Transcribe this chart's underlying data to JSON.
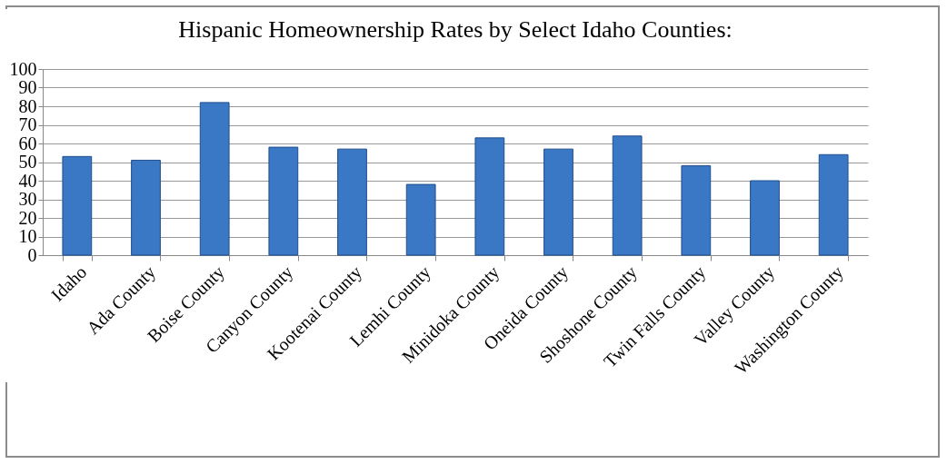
{
  "chart_data": {
    "type": "bar",
    "title": "Hispanic Homeownership Rates by Select Idaho Counties:",
    "categories": [
      "Idaho",
      "Ada County",
      "Boise County",
      "Canyon County",
      "Kootenai County",
      "Lemhi County",
      "Minidoka County",
      "Oneida County",
      "Shoshone County",
      "Twin Falls County",
      "Valley County",
      "Washington County"
    ],
    "values": [
      53,
      51,
      82,
      58,
      57,
      38,
      63,
      57,
      64,
      48,
      40,
      54
    ],
    "color": "#3a77c4",
    "ylim": [
      0,
      100
    ],
    "yticks": [
      0,
      10,
      20,
      30,
      40,
      50,
      60,
      70,
      80,
      90,
      100
    ],
    "grid": "y"
  }
}
